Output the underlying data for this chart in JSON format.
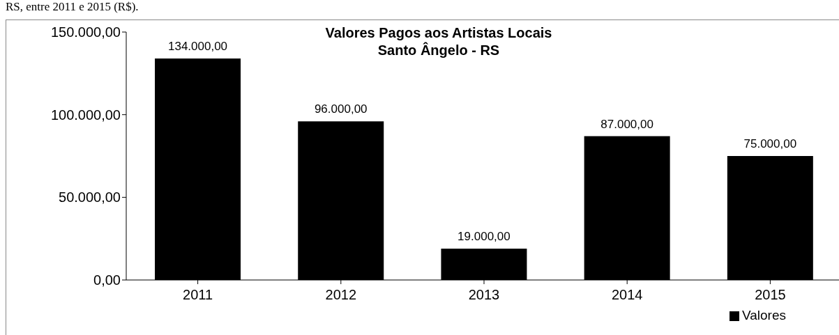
{
  "chart_data": {
    "type": "bar",
    "title": "Valores Pagos aos Artistas Locais\nSanto Ângelo - RS",
    "annotations": [
      "RS, entre 2011 e 2015 (R$)."
    ],
    "categories": [
      "2011",
      "2012",
      "2013",
      "2014",
      "2015"
    ],
    "series": [
      {
        "name": "Valores",
        "color": "#000000",
        "values": [
          134000,
          96000,
          19000,
          87000,
          75000
        ],
        "value_labels": [
          "134.000,00",
          "96.000,00",
          "19.000,00",
          "87.000,00",
          "75.000,00"
        ]
      }
    ],
    "ylim": [
      0,
      150000
    ],
    "yticks": [
      {
        "value": 0,
        "label": "0,00"
      },
      {
        "value": 50000,
        "label": "50.000,00"
      },
      {
        "value": 100000,
        "label": "100.000,00"
      },
      {
        "value": 150000,
        "label": "150.000,00"
      }
    ],
    "grid": false,
    "legend": "bottom right"
  }
}
